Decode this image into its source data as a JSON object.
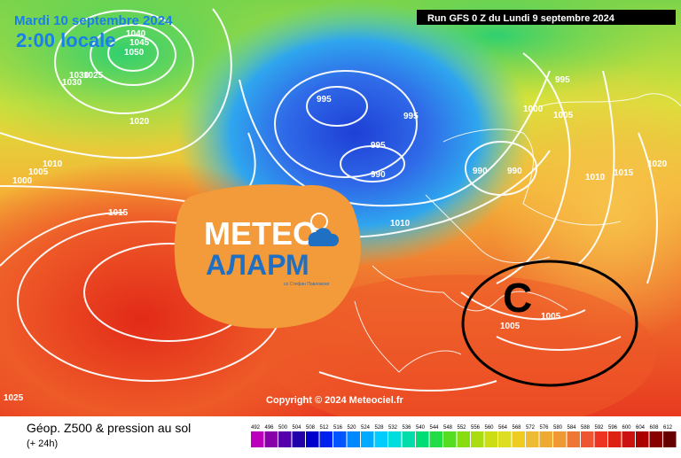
{
  "header": {
    "date": "Mardi 10 septembre 2024",
    "local_time": "2:00 locale",
    "run_info": "Run GFS 0 Z du Lundi 9 septembre 2024"
  },
  "copyright": "Copyright © 2024 Meteociel.fr",
  "logo": {
    "line1": "METEO",
    "line2": "АЛАРМ",
    "tagline": "со Стефан Павловски"
  },
  "annotation_letter": "C",
  "pressure_labels": [
    "1040",
    "1045",
    "1050",
    "1030",
    "1025",
    "1030",
    "1020",
    "1010",
    "1005",
    "1000",
    "1015",
    "995",
    "995",
    "995",
    "990",
    "1010",
    "990",
    "990",
    "1000",
    "995",
    "1005",
    "1010",
    "1015",
    "1020",
    "1005",
    "1005",
    "1025"
  ],
  "footer": {
    "title": "Géop. Z500 & pression au sol",
    "subtitle": "(+ 24h)",
    "scale": [
      "492",
      "496",
      "500",
      "504",
      "508",
      "512",
      "516",
      "520",
      "524",
      "528",
      "532",
      "536",
      "540",
      "544",
      "548",
      "552",
      "556",
      "560",
      "564",
      "568",
      "572",
      "576",
      "580",
      "584",
      "588",
      "592",
      "596",
      "600",
      "604",
      "608",
      "612"
    ],
    "scale_colors": [
      "#bb00bb",
      "#8800aa",
      "#5500aa",
      "#2200aa",
      "#0000cc",
      "#0022ee",
      "#0055ff",
      "#0088ff",
      "#00aaff",
      "#00ccff",
      "#00dddd",
      "#00ddaa",
      "#00dd77",
      "#22dd44",
      "#55dd22",
      "#88dd11",
      "#aadd11",
      "#ccdd11",
      "#dddd22",
      "#eecc22",
      "#eebb33",
      "#eeaa33",
      "#ee9933",
      "#ee7733",
      "#ee5533",
      "#ee3322",
      "#dd2211",
      "#cc1111",
      "#aa0000",
      "#880000",
      "#660000"
    ]
  }
}
